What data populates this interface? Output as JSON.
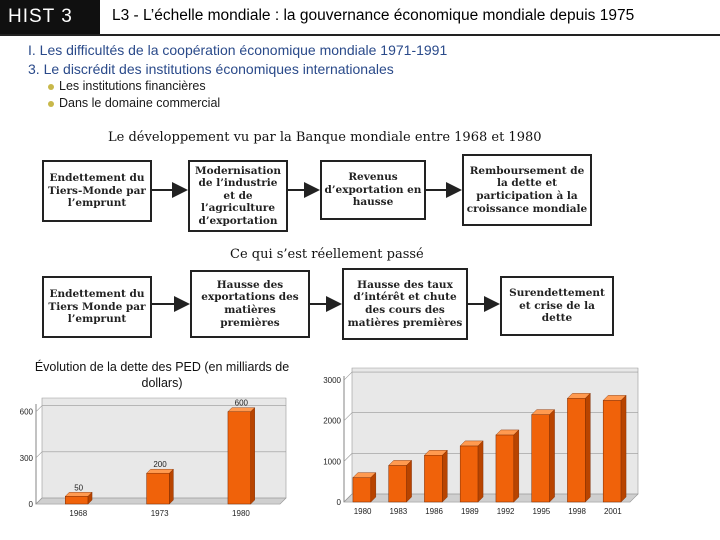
{
  "header": {
    "course_code": "HIST 3",
    "lesson_title": "L3 - L’échelle mondiale : la gouvernance économique mondiale depuis 1975"
  },
  "outline": {
    "section": "I. Les difficultés de la coopération économique mondiale 1971-1991",
    "subsection": "3. Le discrédit des institutions économiques internationales",
    "bullets": [
      "Les institutions financières",
      "Dans le domaine commercial"
    ]
  },
  "diagram1": {
    "title": "Le développement vu par la Banque mondiale entre 1968 et 1980",
    "boxes": [
      "Endettement du Tiers-Monde par l’emprunt",
      "Modernisation de l’industrie et de l’agriculture d’exportation",
      "Revenus d’exportation en hausse",
      "Remboursement de la dette et participation à la croissance mondiale"
    ]
  },
  "diagram2": {
    "title": "Ce qui s’est réellement passé",
    "boxes": [
      "Endettement du Tiers Monde par l’emprunt",
      "Hausse des exportations des matières premières",
      "Hausse des taux d’intérêt et chute des cours des matières premières",
      "Surendettement et crise de la dette"
    ]
  },
  "chart_caption": "Évolution de la dette des PED (en milliards de dollars)",
  "colors": {
    "bar": "#f0620a",
    "bar_top": "#ff9a50",
    "bar_side": "#b84400",
    "chart_bg": "#e8e8e8",
    "header_bg": "#101010",
    "outline_text": "#2a4a8a",
    "bullet": "#c8b84a"
  },
  "chart_data": [
    {
      "type": "bar",
      "title": "Évolution de la dette des PED (en milliards de dollars)",
      "categories": [
        "1968",
        "1973",
        "1980"
      ],
      "values": [
        50,
        200,
        600
      ],
      "data_labels": [
        "50",
        "200",
        "600"
      ],
      "yticks": [
        0,
        300,
        600
      ],
      "ylim": [
        0,
        650
      ],
      "grid": true
    },
    {
      "type": "bar",
      "title": "",
      "categories": [
        "1980",
        "1983",
        "1986",
        "1989",
        "1992",
        "1995",
        "1998",
        "2001"
      ],
      "values": [
        600,
        900,
        1150,
        1380,
        1650,
        2150,
        2550,
        2500
      ],
      "yticks": [
        0,
        1000,
        2000,
        3000
      ],
      "ylim": [
        0,
        3100
      ],
      "grid": true
    }
  ]
}
